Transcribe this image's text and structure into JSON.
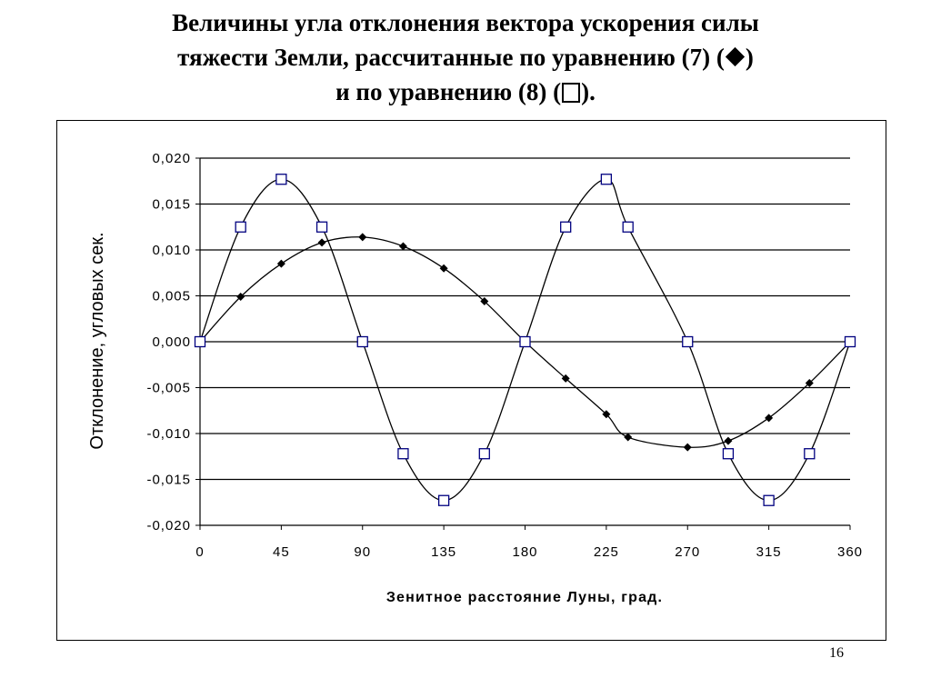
{
  "title": {
    "line1": "Величины угла отклонения вектора ускорения силы",
    "line2_before": "тяжести Земли, рассчитанные по уравнению (7)  (",
    "line2_after": ")",
    "line3_before": "и по уравнению (8) (",
    "line3_after": ")."
  },
  "page_number": "16",
  "chart_data": {
    "type": "line",
    "xlabel": "Зенитное расстояние Луны, град.",
    "ylabel": "Отклонение, угловых сек.",
    "xlim": [
      0,
      360
    ],
    "ylim": [
      -0.02,
      0.02
    ],
    "x_ticks": [
      "0",
      "45",
      "90",
      "135",
      "180",
      "225",
      "270",
      "315",
      "360"
    ],
    "x_tick_values": [
      0,
      45,
      90,
      135,
      180,
      225,
      270,
      315,
      360
    ],
    "y_ticks": [
      "0,020",
      "0,015",
      "0,010",
      "0,005",
      "0,000",
      "-0,005",
      "-0,010",
      "-0,015",
      "-0,020"
    ],
    "y_tick_values": [
      0.02,
      0.015,
      0.01,
      0.005,
      0,
      -0.005,
      -0.01,
      -0.015,
      -0.02
    ],
    "grid": "horizontal",
    "series": [
      {
        "marker": "diamond",
        "color": "#000000",
        "x": [
          0,
          22.5,
          45,
          67.5,
          90,
          112.5,
          135,
          157.5,
          180,
          202.5,
          225,
          237,
          270,
          292.5,
          315,
          337.5,
          360
        ],
        "y": [
          0.0,
          0.0049,
          0.0085,
          0.0108,
          0.0114,
          0.0104,
          0.008,
          0.0044,
          0.0,
          -0.004,
          -0.0079,
          -0.0104,
          -0.0115,
          -0.0108,
          -0.0083,
          -0.0045,
          0.0
        ]
      },
      {
        "marker": "square",
        "color": "#000080",
        "x": [
          0,
          22.5,
          45,
          67.5,
          90,
          112.5,
          135,
          157.5,
          180,
          202.5,
          225,
          237,
          270,
          292.5,
          315,
          337.5,
          360
        ],
        "y": [
          0.0,
          0.0125,
          0.0177,
          0.0125,
          0.0,
          -0.0122,
          -0.0173,
          -0.0122,
          0.0,
          0.0125,
          0.0177,
          0.0125,
          0.0,
          -0.0122,
          -0.0173,
          -0.0122,
          0.0
        ]
      }
    ]
  }
}
